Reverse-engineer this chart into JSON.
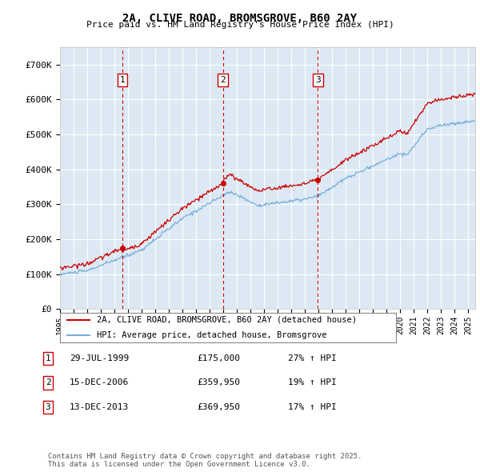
{
  "title": "2A, CLIVE ROAD, BROMSGROVE, B60 2AY",
  "subtitle": "Price paid vs. HM Land Registry's House Price Index (HPI)",
  "ylim": [
    0,
    750000
  ],
  "yticks": [
    0,
    100000,
    200000,
    300000,
    400000,
    500000,
    600000,
    700000
  ],
  "ytick_labels": [
    "£0",
    "£100K",
    "£200K",
    "£300K",
    "£400K",
    "£500K",
    "£600K",
    "£700K"
  ],
  "bg_color": "#dce9f5",
  "line_color_red": "#cc0000",
  "line_color_blue": "#7aaed6",
  "grid_color": "#ffffff",
  "transactions": [
    {
      "date_x": 1999.57,
      "price": 175000,
      "label": "1"
    },
    {
      "date_x": 2006.96,
      "price": 359950,
      "label": "2"
    },
    {
      "date_x": 2013.95,
      "price": 369950,
      "label": "3"
    }
  ],
  "legend_entries": [
    "2A, CLIVE ROAD, BROMSGROVE, B60 2AY (detached house)",
    "HPI: Average price, detached house, Bromsgrove"
  ],
  "table_rows": [
    {
      "num": "1",
      "date": "29-JUL-1999",
      "price": "£175,000",
      "hpi": "27% ↑ HPI"
    },
    {
      "num": "2",
      "date": "15-DEC-2006",
      "price": "£359,950",
      "hpi": "19% ↑ HPI"
    },
    {
      "num": "3",
      "date": "13-DEC-2013",
      "price": "£369,950",
      "hpi": "17% ↑ HPI"
    }
  ],
  "footer": "Contains HM Land Registry data © Crown copyright and database right 2025.\nThis data is licensed under the Open Government Licence v3.0.",
  "xmin": 1995,
  "xmax": 2025.5
}
